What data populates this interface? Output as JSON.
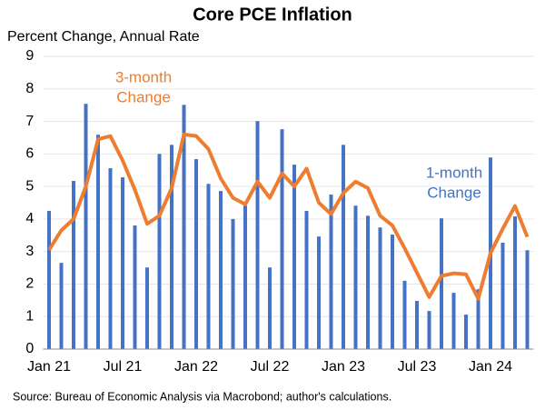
{
  "chart_data": {
    "type": "bar",
    "title": "Core PCE Inflation",
    "y_label": "Percent Change, Annual Rate",
    "source": "Source: Bureau of Economic Analysis via Macrobond; author's calculations.",
    "categories": [
      "Jan 21",
      null,
      null,
      null,
      null,
      null,
      "Jul 21",
      null,
      null,
      null,
      null,
      null,
      "Jan 22",
      null,
      null,
      null,
      null,
      null,
      "Jul 22",
      null,
      null,
      null,
      null,
      null,
      "Jan 23",
      null,
      null,
      null,
      null,
      null,
      "Jul 23",
      null,
      null,
      null,
      null,
      null,
      "Jan 24",
      null,
      null,
      null
    ],
    "series": [
      {
        "name": "1-month Change",
        "type": "bar",
        "color": "#4472c4",
        "values": [
          4.25,
          2.65,
          5.17,
          7.54,
          6.59,
          5.56,
          5.28,
          3.8,
          2.51,
          6.0,
          6.28,
          7.51,
          5.84,
          5.08,
          4.86,
          4.0,
          4.41,
          7.01,
          2.51,
          6.76,
          5.67,
          4.25,
          3.46,
          4.75,
          6.28,
          4.41,
          4.1,
          3.74,
          3.52,
          2.1,
          1.48,
          1.17,
          4.02,
          1.73,
          1.06,
          1.84,
          5.89,
          3.27,
          4.08,
          3.04
        ]
      },
      {
        "name": "3-month Change",
        "type": "line",
        "color": "#ed7d31",
        "values": [
          3.05,
          3.65,
          4.0,
          5.0,
          6.45,
          6.55,
          5.8,
          4.9,
          3.85,
          4.1,
          4.95,
          6.6,
          6.55,
          6.15,
          5.25,
          4.65,
          4.45,
          5.15,
          4.65,
          5.4,
          5.0,
          5.55,
          4.5,
          4.15,
          4.8,
          5.15,
          4.95,
          4.1,
          3.8,
          3.1,
          2.35,
          1.6,
          2.25,
          2.33,
          2.3,
          1.55,
          2.95,
          3.7,
          4.4,
          3.45
        ]
      }
    ],
    "annotations": [
      {
        "lines": [
          "3-month",
          "Change"
        ],
        "color": "#ed7d31"
      },
      {
        "lines": [
          "1-month",
          "Change"
        ],
        "color": "#4472c4"
      }
    ],
    "ylim": [
      0,
      9
    ],
    "yticks": [
      0,
      1,
      2,
      3,
      4,
      5,
      6,
      7,
      8,
      9
    ],
    "grid": true
  }
}
